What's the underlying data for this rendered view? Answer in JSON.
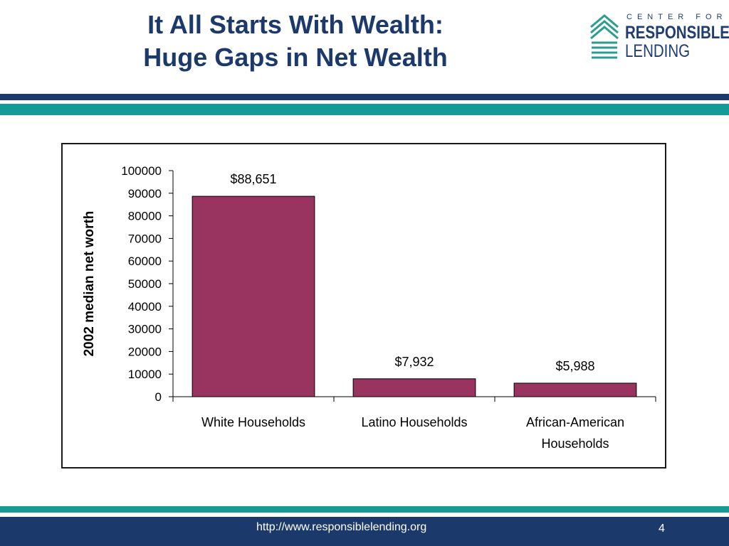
{
  "header": {
    "title_line1": "It All Starts With Wealth:",
    "title_line2": "Huge Gaps in Net Wealth",
    "logo": {
      "small_text": "CENTER FOR",
      "line1": "RESPONSIBLE",
      "line2": "LENDING",
      "icon": "stacked-chevrons-icon",
      "color": "#1f3d73",
      "accent": "#2a9d8f"
    }
  },
  "colors": {
    "navy": "#1b3a6b",
    "teal": "#159a96",
    "bar": "#993360"
  },
  "chart_data": {
    "type": "bar",
    "categories": [
      "White Households",
      "Latino Households",
      "African-American Households"
    ],
    "category_lines": [
      [
        "White Households"
      ],
      [
        "Latino Households"
      ],
      [
        "African-American",
        "Households"
      ]
    ],
    "values": [
      88651,
      7932,
      5988
    ],
    "data_labels": [
      "$88,651",
      "$7,932",
      "$5,988"
    ],
    "ylabel": "2002 median net worth",
    "xlabel": "",
    "ylim": [
      0,
      100000
    ],
    "yticks": [
      "0",
      "10000",
      "20000",
      "30000",
      "40000",
      "50000",
      "60000",
      "70000",
      "80000",
      "90000",
      "100000"
    ],
    "grid": false,
    "legend": "none"
  },
  "footer": {
    "url": "http://www.responsiblelending.org",
    "page_number": "4"
  }
}
